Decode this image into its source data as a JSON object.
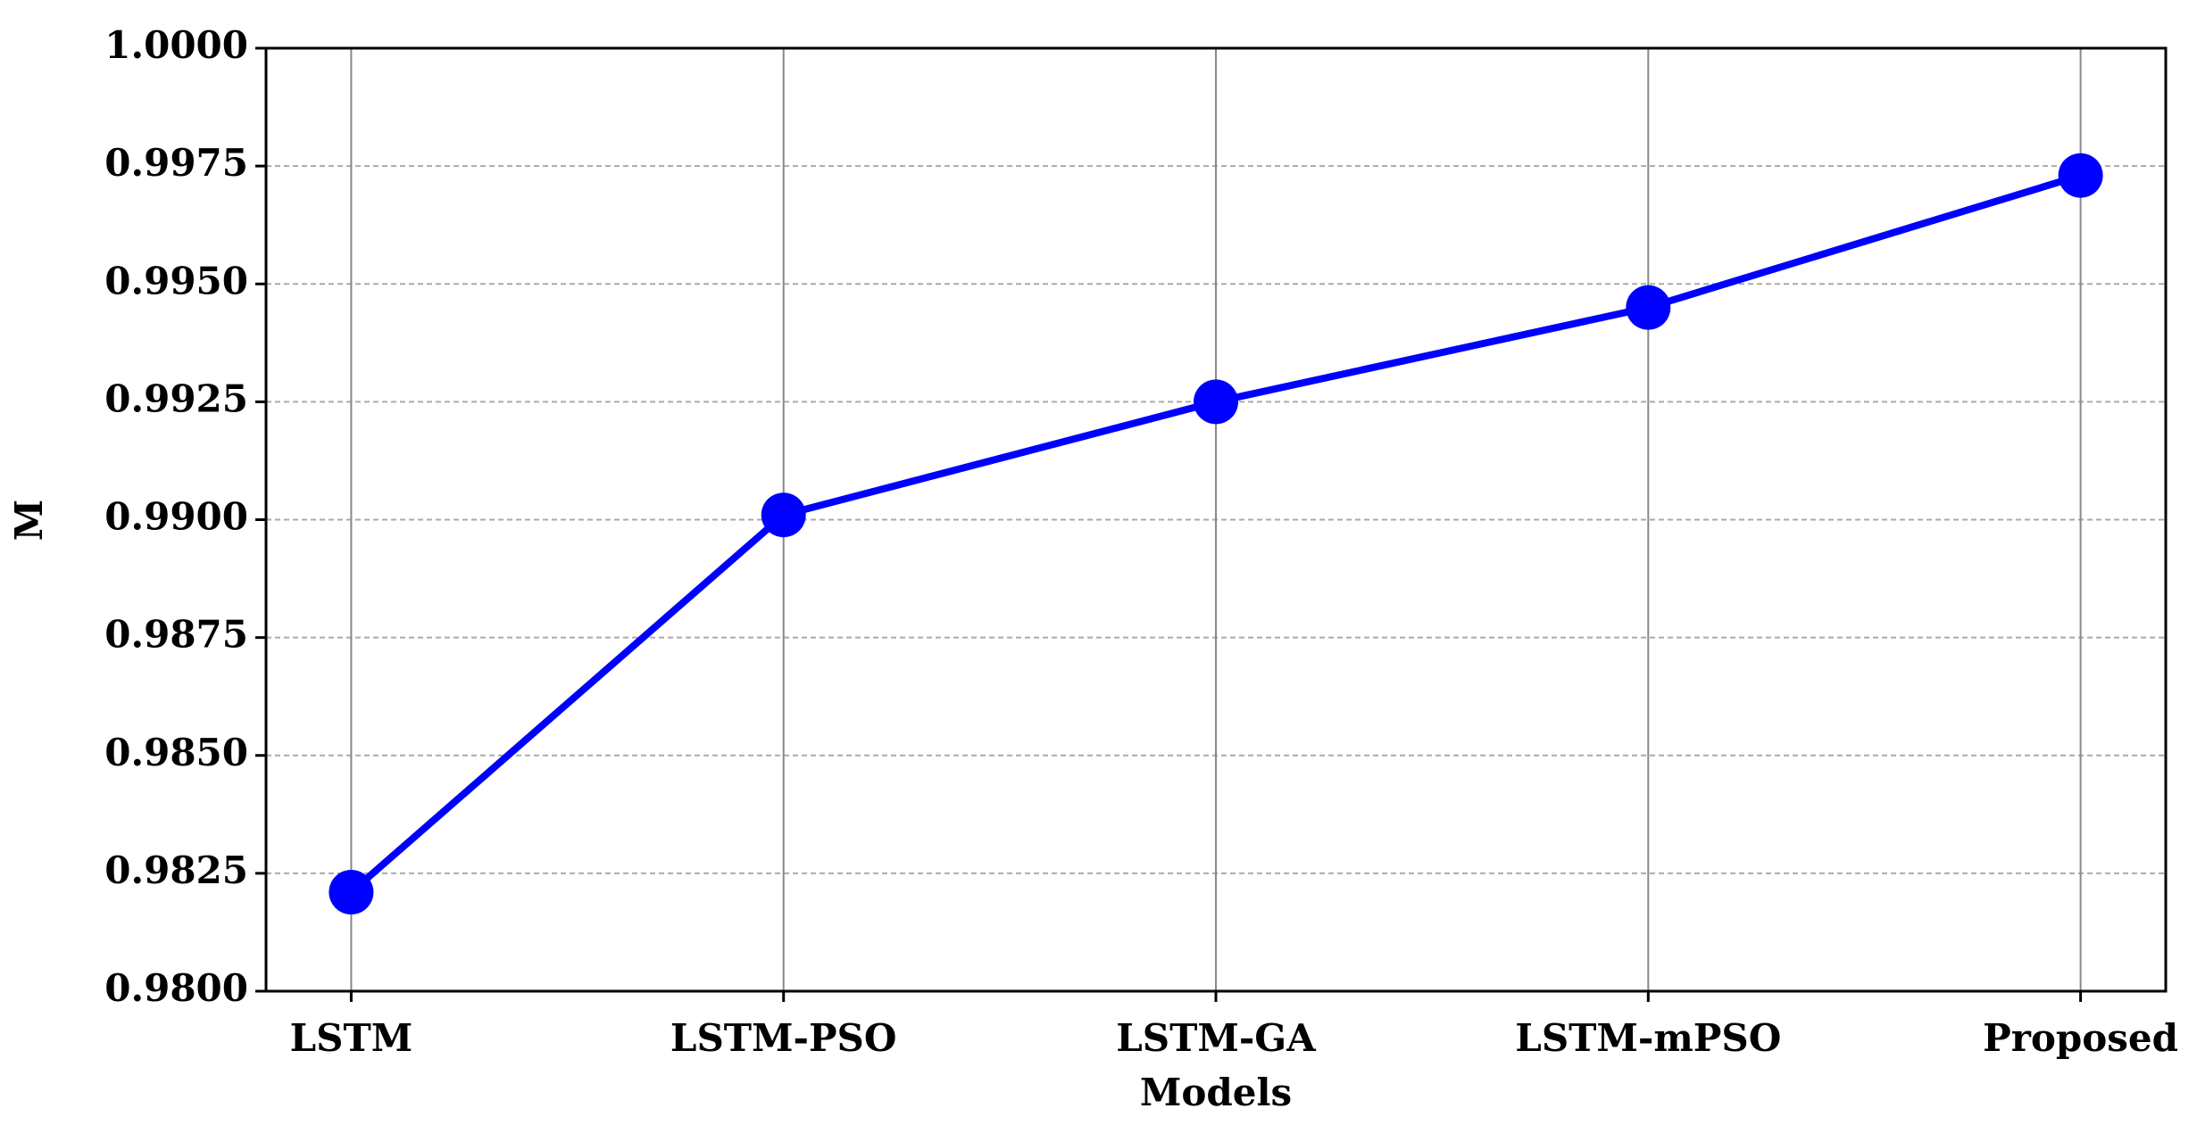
{
  "chart_data": {
    "type": "line",
    "x_label": "Models",
    "y_label": "M",
    "categories": [
      "LSTM",
      "LSTM-PSO",
      "LSTM-GA",
      "LSTM-mPSO",
      "Proposed"
    ],
    "series": [
      {
        "name": "M",
        "color": "#0000ff",
        "values": [
          0.9821,
          0.9901,
          0.9925,
          0.9945,
          0.9973
        ]
      }
    ],
    "ylim": [
      0.98,
      1.0
    ],
    "yticks": [
      {
        "value": 0.98,
        "label": "0.9800"
      },
      {
        "value": 0.9825,
        "label": "0.9825"
      },
      {
        "value": 0.985,
        "label": "0.9850"
      },
      {
        "value": 0.9875,
        "label": "0.9875"
      },
      {
        "value": 0.99,
        "label": "0.9900"
      },
      {
        "value": 0.9925,
        "label": "0.9925"
      },
      {
        "value": 0.995,
        "label": "0.9950"
      },
      {
        "value": 0.9975,
        "label": "0.9975"
      },
      {
        "value": 1.0,
        "label": "1.0000"
      }
    ],
    "grid": true
  }
}
